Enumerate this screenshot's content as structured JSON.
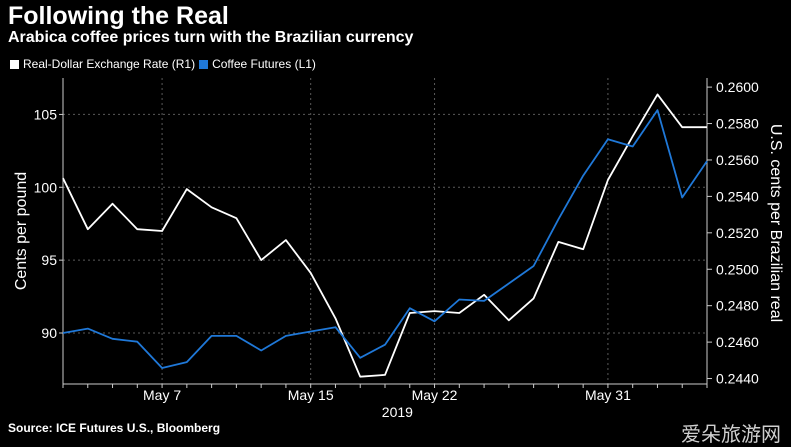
{
  "header": {
    "title": "Following the Real",
    "subtitle": "Arabica coffee prices turn with the Brazilian currency"
  },
  "legend": [
    {
      "label": "Real-Dollar Exchange Rate (R1)",
      "color": "#ffffff"
    },
    {
      "label": "Coffee Futures (L1)",
      "color": "#1f78d8"
    }
  ],
  "footer": {
    "source": "Source: ICE Futures U.S., Bloomberg",
    "watermark": "爱朵旅游网"
  },
  "chart_data": {
    "type": "line",
    "x_tick_labels": [
      "May 7",
      "May 15",
      "May 22",
      "May 31"
    ],
    "x_tick_indices": [
      4,
      10,
      15,
      22
    ],
    "x_sub_label": "2019",
    "y_left": {
      "label": "Cents per pound",
      "ticks": [
        90,
        95,
        100,
        105
      ],
      "tick_labels": [
        "90",
        "95",
        "100",
        "105"
      ],
      "range": [
        86.5,
        107.5
      ]
    },
    "y_right": {
      "label": "U.S. cents per Brazilian real",
      "ticks": [
        0.244,
        0.246,
        0.248,
        0.25,
        0.252,
        0.254,
        0.256,
        0.258,
        0.26
      ],
      "tick_labels": [
        "0.2440",
        "0.2460",
        "0.2480",
        "0.2500",
        "0.2520",
        "0.2540",
        "0.2560",
        "0.2580",
        "0.2600"
      ],
      "range": [
        0.2437,
        0.2605
      ]
    },
    "grid": true,
    "series": [
      {
        "name": "Real-Dollar Exchange Rate (R1)",
        "axis": "right",
        "color": "#ffffff",
        "values": [
          0.255,
          0.2522,
          0.2536,
          0.2522,
          0.2521,
          0.2544,
          0.2534,
          0.2528,
          0.2505,
          0.2516,
          0.2498,
          0.2473,
          0.2441,
          0.2442,
          0.2476,
          0.2477,
          0.2476,
          0.2486,
          0.2472,
          0.2484,
          0.2515,
          0.2511,
          0.2549,
          0.2573,
          0.2596,
          0.2578,
          0.2578
        ]
      },
      {
        "name": "Coffee Futures (L1)",
        "axis": "left",
        "color": "#1f78d8",
        "values": [
          90.0,
          90.3,
          89.6,
          89.4,
          87.6,
          88.0,
          89.8,
          89.8,
          88.8,
          89.8,
          90.1,
          90.4,
          88.3,
          89.2,
          91.7,
          90.8,
          92.3,
          92.2,
          93.4,
          94.6,
          97.8,
          100.8,
          103.3,
          102.8,
          105.3,
          99.3,
          101.8
        ]
      }
    ]
  }
}
